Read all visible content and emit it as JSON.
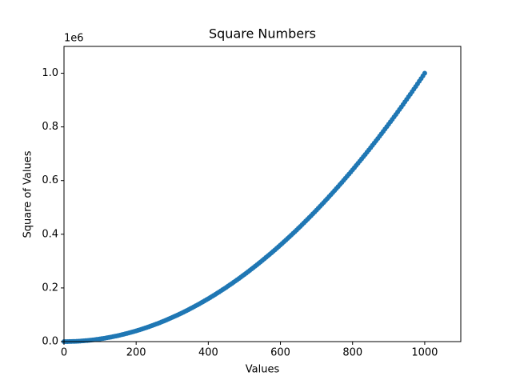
{
  "chart_data": {
    "type": "scatter",
    "title": "Square Numbers",
    "x_label": "Values",
    "y_label": "Square of Values",
    "y_offset_label": "1e6",
    "color": "#1f77b4",
    "x": [
      0,
      5,
      10,
      15,
      20,
      25,
      30,
      35,
      40,
      45,
      50,
      55,
      60,
      65,
      70,
      75,
      80,
      85,
      90,
      95,
      100,
      105,
      110,
      115,
      120,
      125,
      130,
      135,
      140,
      145,
      150,
      155,
      160,
      165,
      170,
      175,
      180,
      185,
      190,
      195,
      200,
      205,
      210,
      215,
      220,
      225,
      230,
      235,
      240,
      245,
      250,
      255,
      260,
      265,
      270,
      275,
      280,
      285,
      290,
      295,
      300,
      305,
      310,
      315,
      320,
      325,
      330,
      335,
      340,
      345,
      350,
      355,
      360,
      365,
      370,
      375,
      380,
      385,
      390,
      395,
      400,
      405,
      410,
      415,
      420,
      425,
      430,
      435,
      440,
      445,
      450,
      455,
      460,
      465,
      470,
      475,
      480,
      485,
      490,
      495,
      500,
      505,
      510,
      515,
      520,
      525,
      530,
      535,
      540,
      545,
      550,
      555,
      560,
      565,
      570,
      575,
      580,
      585,
      590,
      595,
      600,
      605,
      610,
      615,
      620,
      625,
      630,
      635,
      640,
      645,
      650,
      655,
      660,
      665,
      670,
      675,
      680,
      685,
      690,
      695,
      700,
      705,
      710,
      715,
      720,
      725,
      730,
      735,
      740,
      745,
      750,
      755,
      760,
      765,
      770,
      775,
      780,
      785,
      790,
      795,
      800,
      805,
      810,
      815,
      820,
      825,
      830,
      835,
      840,
      845,
      850,
      855,
      860,
      865,
      870,
      875,
      880,
      885,
      890,
      895,
      900,
      905,
      910,
      915,
      920,
      925,
      930,
      935,
      940,
      945,
      950,
      955,
      960,
      965,
      970,
      975,
      980,
      985,
      990,
      995,
      1000
    ],
    "values": [
      0,
      25,
      100,
      225,
      400,
      625,
      900,
      1225,
      1600,
      2025,
      2500,
      3025,
      3600,
      4225,
      4900,
      5625,
      6400,
      7225,
      8100,
      9025,
      10000,
      11025,
      12100,
      13225,
      14400,
      15625,
      16900,
      18225,
      19600,
      21025,
      22500,
      24025,
      25600,
      27225,
      28900,
      30625,
      32400,
      34225,
      36100,
      38025,
      40000,
      42025,
      44100,
      46225,
      48400,
      50625,
      52900,
      55225,
      57600,
      60025,
      62500,
      65025,
      67600,
      70225,
      72900,
      75625,
      78400,
      81225,
      84100,
      87025,
      90000,
      93025,
      96100,
      99225,
      102400,
      105625,
      108900,
      112225,
      115600,
      119025,
      122500,
      126025,
      129600,
      133225,
      136900,
      140625,
      144400,
      148225,
      152100,
      156025,
      160000,
      164025,
      168100,
      172225,
      176400,
      180625,
      184900,
      189225,
      193600,
      198025,
      202500,
      207025,
      211600,
      216225,
      220900,
      225625,
      230400,
      235225,
      240100,
      245025,
      250000,
      255025,
      260100,
      265225,
      270400,
      275625,
      280900,
      286225,
      291600,
      297025,
      302500,
      308025,
      313600,
      319225,
      324900,
      330625,
      336400,
      342225,
      348100,
      354025,
      360000,
      366025,
      372100,
      378225,
      384400,
      390625,
      396900,
      403225,
      409600,
      416025,
      422500,
      429025,
      435600,
      442225,
      448900,
      455625,
      462400,
      469225,
      476100,
      483025,
      490000,
      497025,
      504100,
      511225,
      518400,
      525625,
      532900,
      540225,
      547600,
      555025,
      562500,
      570025,
      577600,
      585225,
      592900,
      600625,
      608400,
      616225,
      624100,
      632025,
      640000,
      648025,
      656100,
      664225,
      672400,
      680625,
      688900,
      697225,
      705600,
      714025,
      722500,
      731025,
      739600,
      748225,
      756900,
      765625,
      774400,
      783225,
      792100,
      801025,
      810000,
      819025,
      828100,
      837225,
      846400,
      855625,
      864900,
      874225,
      883600,
      893025,
      902500,
      912025,
      921600,
      931225,
      940900,
      950625,
      960400,
      970225,
      980100,
      990025,
      1000000
    ],
    "xlim": [
      0,
      1100
    ],
    "xticks": [
      0,
      200,
      400,
      600,
      800,
      1000
    ],
    "ylim": [
      0,
      1100000
    ],
    "yticks": [
      {
        "value": 0,
        "label": "0.0"
      },
      {
        "value": 200000,
        "label": "0.2"
      },
      {
        "value": 400000,
        "label": "0.4"
      },
      {
        "value": 600000,
        "label": "0.6"
      },
      {
        "value": 800000,
        "label": "0.8"
      },
      {
        "value": 1000000,
        "label": "1.0"
      }
    ]
  }
}
